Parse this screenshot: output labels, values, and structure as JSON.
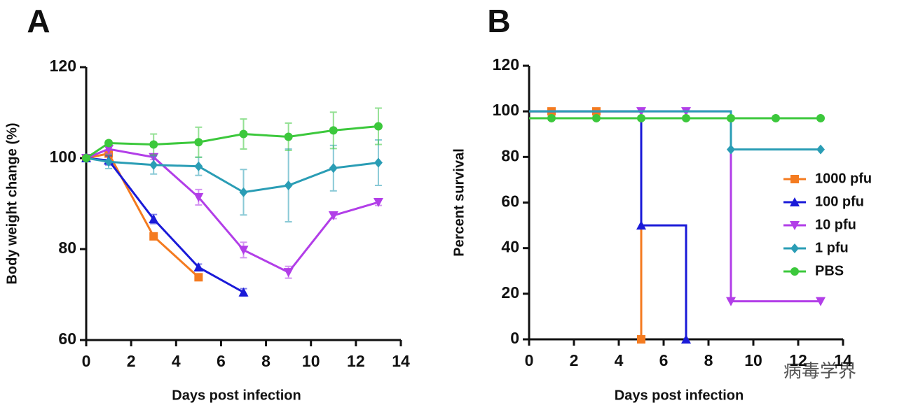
{
  "chart_data": [
    {
      "label": "A",
      "type": "line",
      "x_label": "Days post infection",
      "y_label": "Body weight change (%)",
      "x": [
        0,
        1,
        3,
        5,
        7,
        9,
        11,
        13
      ],
      "xlim": [
        0,
        14
      ],
      "xticks": [
        0,
        2,
        4,
        6,
        8,
        10,
        12,
        14
      ],
      "ylim": [
        60,
        120
      ],
      "yticks": [
        60,
        80,
        100,
        120
      ],
      "series": [
        {
          "color": "#f47b20",
          "marker": "square",
          "values": [
            100,
            101,
            82.8,
            73.8,
            null,
            null,
            null,
            null
          ],
          "errors": [
            0,
            0.5,
            0.5,
            0.5,
            null,
            null,
            null,
            null
          ]
        },
        {
          "color": "#1a1ad8",
          "marker": "triangle-up",
          "values": [
            100,
            99.5,
            86.6,
            76,
            70.5,
            null,
            null,
            null
          ],
          "errors": [
            0,
            1,
            1,
            0.7,
            0.8,
            null,
            null,
            null
          ]
        },
        {
          "color": "#b23ee8",
          "marker": "triangle-down",
          "values": [
            100,
            102,
            100.2,
            91.4,
            79.8,
            74.9,
            87.4,
            90.3
          ],
          "errors": [
            0,
            1,
            0.5,
            1.7,
            1.7,
            1.3,
            0.7,
            0.7
          ]
        },
        {
          "color": "#2a9db5",
          "marker": "diamond",
          "values": [
            100,
            99.2,
            98.5,
            98.2,
            92.5,
            94,
            97.8,
            99
          ],
          "errors": [
            0,
            1.5,
            2,
            2,
            5,
            8,
            5,
            5
          ]
        },
        {
          "color": "#3cc83c",
          "marker": "circle",
          "values": [
            100,
            103.3,
            103,
            103.5,
            105.3,
            104.7,
            106.1,
            107
          ],
          "errors": [
            0,
            0.5,
            2.3,
            3.3,
            3.3,
            3,
            4,
            4
          ]
        }
      ]
    },
    {
      "label": "B",
      "type": "step",
      "x_label": "Days post infection",
      "y_label": "Percent survival",
      "xlim": [
        0,
        14
      ],
      "xticks": [
        0,
        2,
        4,
        6,
        8,
        10,
        12,
        14
      ],
      "ylim": [
        0,
        120
      ],
      "yticks": [
        0,
        20,
        40,
        60,
        80,
        100,
        120
      ],
      "legend": "right",
      "series": [
        {
          "name": "1000 pfu",
          "color": "#f47b20",
          "marker": "square",
          "x": [
            0,
            1,
            3,
            5
          ],
          "values": [
            100,
            100,
            100,
            0
          ]
        },
        {
          "name": "100 pfu",
          "color": "#1a1ad8",
          "marker": "triangle-up",
          "x": [
            0,
            5,
            7
          ],
          "values": [
            100,
            50,
            0
          ]
        },
        {
          "name": "10 pfu",
          "color": "#b23ee8",
          "marker": "triangle-down",
          "x": [
            0,
            5,
            7,
            9,
            13
          ],
          "values": [
            100,
            100,
            100,
            16.7,
            16.7
          ]
        },
        {
          "name": "1 pfu",
          "color": "#2a9db5",
          "marker": "diamond",
          "x": [
            0,
            9,
            13
          ],
          "values": [
            100,
            83.3,
            83.3
          ]
        },
        {
          "name": "PBS",
          "color": "#3cc83c",
          "marker": "circle",
          "x": [
            0,
            1,
            3,
            5,
            7,
            9,
            11,
            13
          ],
          "values": [
            97,
            97,
            97,
            97,
            97,
            97,
            97,
            97
          ]
        }
      ]
    }
  ],
  "watermark": "病毒学界"
}
